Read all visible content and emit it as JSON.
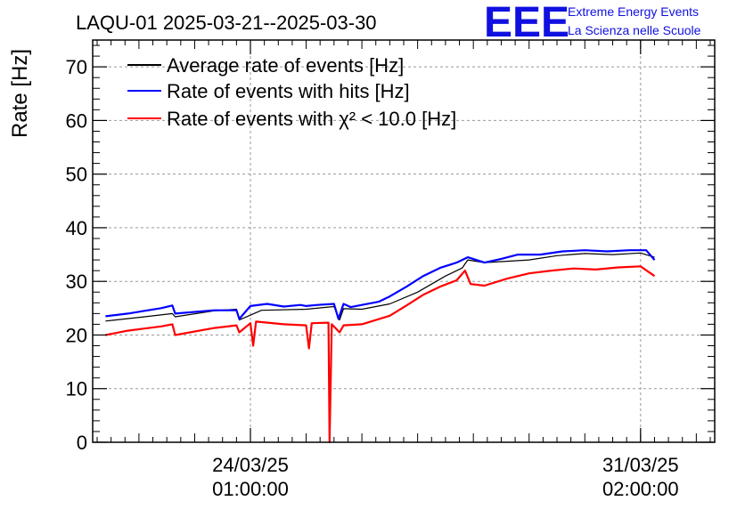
{
  "chart_data": {
    "type": "line",
    "title": "LAQU-01 2025-03-21--2025-03-30",
    "ylabel": "Rate [Hz]",
    "xlabel": "",
    "ylim": [
      0,
      75
    ],
    "y_ticks": [
      0,
      10,
      20,
      30,
      40,
      50,
      60,
      70
    ],
    "xlim_days": [
      -2.83,
      8.33
    ],
    "x_ticks": [
      {
        "value": 0,
        "date": "24/03/25",
        "time": "01:00:00"
      },
      {
        "value": 7,
        "date": "31/03/25",
        "time": "02:00:00"
      }
    ],
    "grid": true,
    "legend_position": "top-left",
    "series": [
      {
        "name": "Average rate of events [Hz]",
        "color": "#000000",
        "points": [
          [
            -2.6,
            22.6
          ],
          [
            -1.9,
            23.4
          ],
          [
            -1.4,
            24.0
          ],
          [
            -1.35,
            23.4
          ],
          [
            -0.65,
            24.5
          ],
          [
            -0.25,
            24.8
          ],
          [
            -0.2,
            22.8
          ],
          [
            0.2,
            24.6
          ],
          [
            1.0,
            24.8
          ],
          [
            1.5,
            25.3
          ],
          [
            1.6,
            22.8
          ],
          [
            1.67,
            24.9
          ],
          [
            2.0,
            24.8
          ],
          [
            2.5,
            25.8
          ],
          [
            3.0,
            28.0
          ],
          [
            3.5,
            31.0
          ],
          [
            3.8,
            32.5
          ],
          [
            3.9,
            34.0
          ],
          [
            4.2,
            33.5
          ],
          [
            5.0,
            34.0
          ],
          [
            5.5,
            34.8
          ],
          [
            6.0,
            35.2
          ],
          [
            6.5,
            35.0
          ],
          [
            7.0,
            35.3
          ],
          [
            7.25,
            34.5
          ]
        ]
      },
      {
        "name": "Rate of events with hits [Hz]",
        "color": "#0000ff",
        "points": [
          [
            -2.6,
            23.5
          ],
          [
            -2.2,
            24.0
          ],
          [
            -1.9,
            24.5
          ],
          [
            -1.6,
            25.0
          ],
          [
            -1.4,
            25.5
          ],
          [
            -1.35,
            24.0
          ],
          [
            -0.65,
            24.6
          ],
          [
            -0.25,
            24.6
          ],
          [
            -0.2,
            23.0
          ],
          [
            0.0,
            25.4
          ],
          [
            0.3,
            25.8
          ],
          [
            0.6,
            25.3
          ],
          [
            0.9,
            25.6
          ],
          [
            1.0,
            25.4
          ],
          [
            1.2,
            25.6
          ],
          [
            1.5,
            25.8
          ],
          [
            1.58,
            23.0
          ],
          [
            1.67,
            25.8
          ],
          [
            1.8,
            25.2
          ],
          [
            2.0,
            25.6
          ],
          [
            2.3,
            26.2
          ],
          [
            2.5,
            27.2
          ],
          [
            2.8,
            29.0
          ],
          [
            3.1,
            31.0
          ],
          [
            3.4,
            32.5
          ],
          [
            3.7,
            33.5
          ],
          [
            3.9,
            34.5
          ],
          [
            4.2,
            33.5
          ],
          [
            4.5,
            34.2
          ],
          [
            4.8,
            35.0
          ],
          [
            5.2,
            35.0
          ],
          [
            5.6,
            35.6
          ],
          [
            6.0,
            35.8
          ],
          [
            6.4,
            35.6
          ],
          [
            6.8,
            35.8
          ],
          [
            7.1,
            35.8
          ],
          [
            7.25,
            34.0
          ]
        ]
      },
      {
        "name": "Rate of events with χ² < 10.0 [Hz]",
        "color": "#ff0000",
        "points": [
          [
            -2.6,
            20.0
          ],
          [
            -2.2,
            20.8
          ],
          [
            -1.9,
            21.2
          ],
          [
            -1.6,
            21.6
          ],
          [
            -1.4,
            22.0
          ],
          [
            -1.35,
            20.0
          ],
          [
            -0.65,
            21.3
          ],
          [
            -0.25,
            21.8
          ],
          [
            -0.2,
            20.5
          ],
          [
            0.0,
            22.2
          ],
          [
            0.05,
            18.0
          ],
          [
            0.1,
            22.5
          ],
          [
            0.6,
            22.0
          ],
          [
            1.0,
            21.8
          ],
          [
            1.05,
            17.5
          ],
          [
            1.1,
            22.2
          ],
          [
            1.4,
            22.3
          ],
          [
            1.42,
            0.0
          ],
          [
            1.46,
            22.0
          ],
          [
            1.6,
            20.5
          ],
          [
            1.67,
            21.8
          ],
          [
            2.0,
            22.0
          ],
          [
            2.5,
            23.6
          ],
          [
            2.8,
            25.5
          ],
          [
            3.1,
            27.5
          ],
          [
            3.4,
            29.0
          ],
          [
            3.7,
            30.2
          ],
          [
            3.85,
            32.0
          ],
          [
            3.95,
            29.5
          ],
          [
            4.2,
            29.2
          ],
          [
            4.6,
            30.5
          ],
          [
            5.0,
            31.5
          ],
          [
            5.4,
            32.0
          ],
          [
            5.8,
            32.4
          ],
          [
            6.2,
            32.2
          ],
          [
            6.6,
            32.6
          ],
          [
            7.0,
            32.8
          ],
          [
            7.25,
            31.0
          ]
        ]
      }
    ]
  },
  "brand": {
    "logo": "EEE",
    "line1": "Extreme Energy Events",
    "line2": "La Scienza nelle Scuole",
    "color": "#1010e0"
  }
}
